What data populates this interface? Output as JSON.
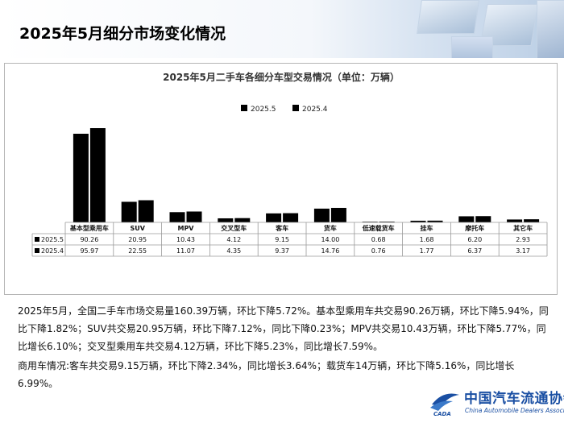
{
  "page": {
    "title": "2025年5月细分市场变化情况"
  },
  "chart_data": {
    "type": "bar",
    "title": "2025年5月二手车各细分车型交易情况（单位：万辆）",
    "categories": [
      "基本型乘用车",
      "SUV",
      "MPV",
      "交叉型车",
      "客车",
      "货车",
      "低速载货车",
      "挂车",
      "摩托车",
      "其它车"
    ],
    "series": [
      {
        "name": "2025.5",
        "values": [
          90.26,
          20.95,
          10.43,
          4.12,
          9.15,
          14.0,
          0.68,
          1.68,
          6.2,
          2.93
        ],
        "labels": [
          "90.26",
          "20.95",
          "10.43",
          "4.12",
          "9.15",
          "14.00",
          "0.68",
          "1.68",
          "6.20",
          "2.93"
        ]
      },
      {
        "name": "2025.4",
        "values": [
          95.97,
          22.55,
          11.07,
          4.35,
          9.37,
          14.76,
          0.76,
          1.77,
          6.37,
          3.17
        ],
        "labels": [
          "95.97",
          "22.55",
          "11.07",
          "4.35",
          "9.37",
          "14.76",
          "0.76",
          "1.77",
          "6.37",
          "3.17"
        ]
      }
    ],
    "legend_position": "top-center",
    "data_table": true,
    "color": "#000000"
  },
  "description": {
    "para1": "2025年5月，全国二手车市场交易量160.39万辆，环比下降5.72%。基本型乘用车共交易90.26万辆，环比下降5.94%，同比下降1.82%；SUV共交易20.95万辆，环比下降7.12%，同比下降0.23%；MPV共交易10.43万辆，环比下降5.77%，同比增长6.10%；交叉型乘用车共交易4.12万辆，环比下降5.23%，同比增长7.59%。",
    "para2": "商用车情况:客车共交易9.15万辆，环比下降2.34%，同比增长3.64%；载货车14万辆，环比下降5.16%，同比增长6.99%。"
  },
  "logo": {
    "name_cn": "中国汽车流通协会",
    "name_en": "China Automobile Dealers Association",
    "mark_text": "CADA"
  }
}
